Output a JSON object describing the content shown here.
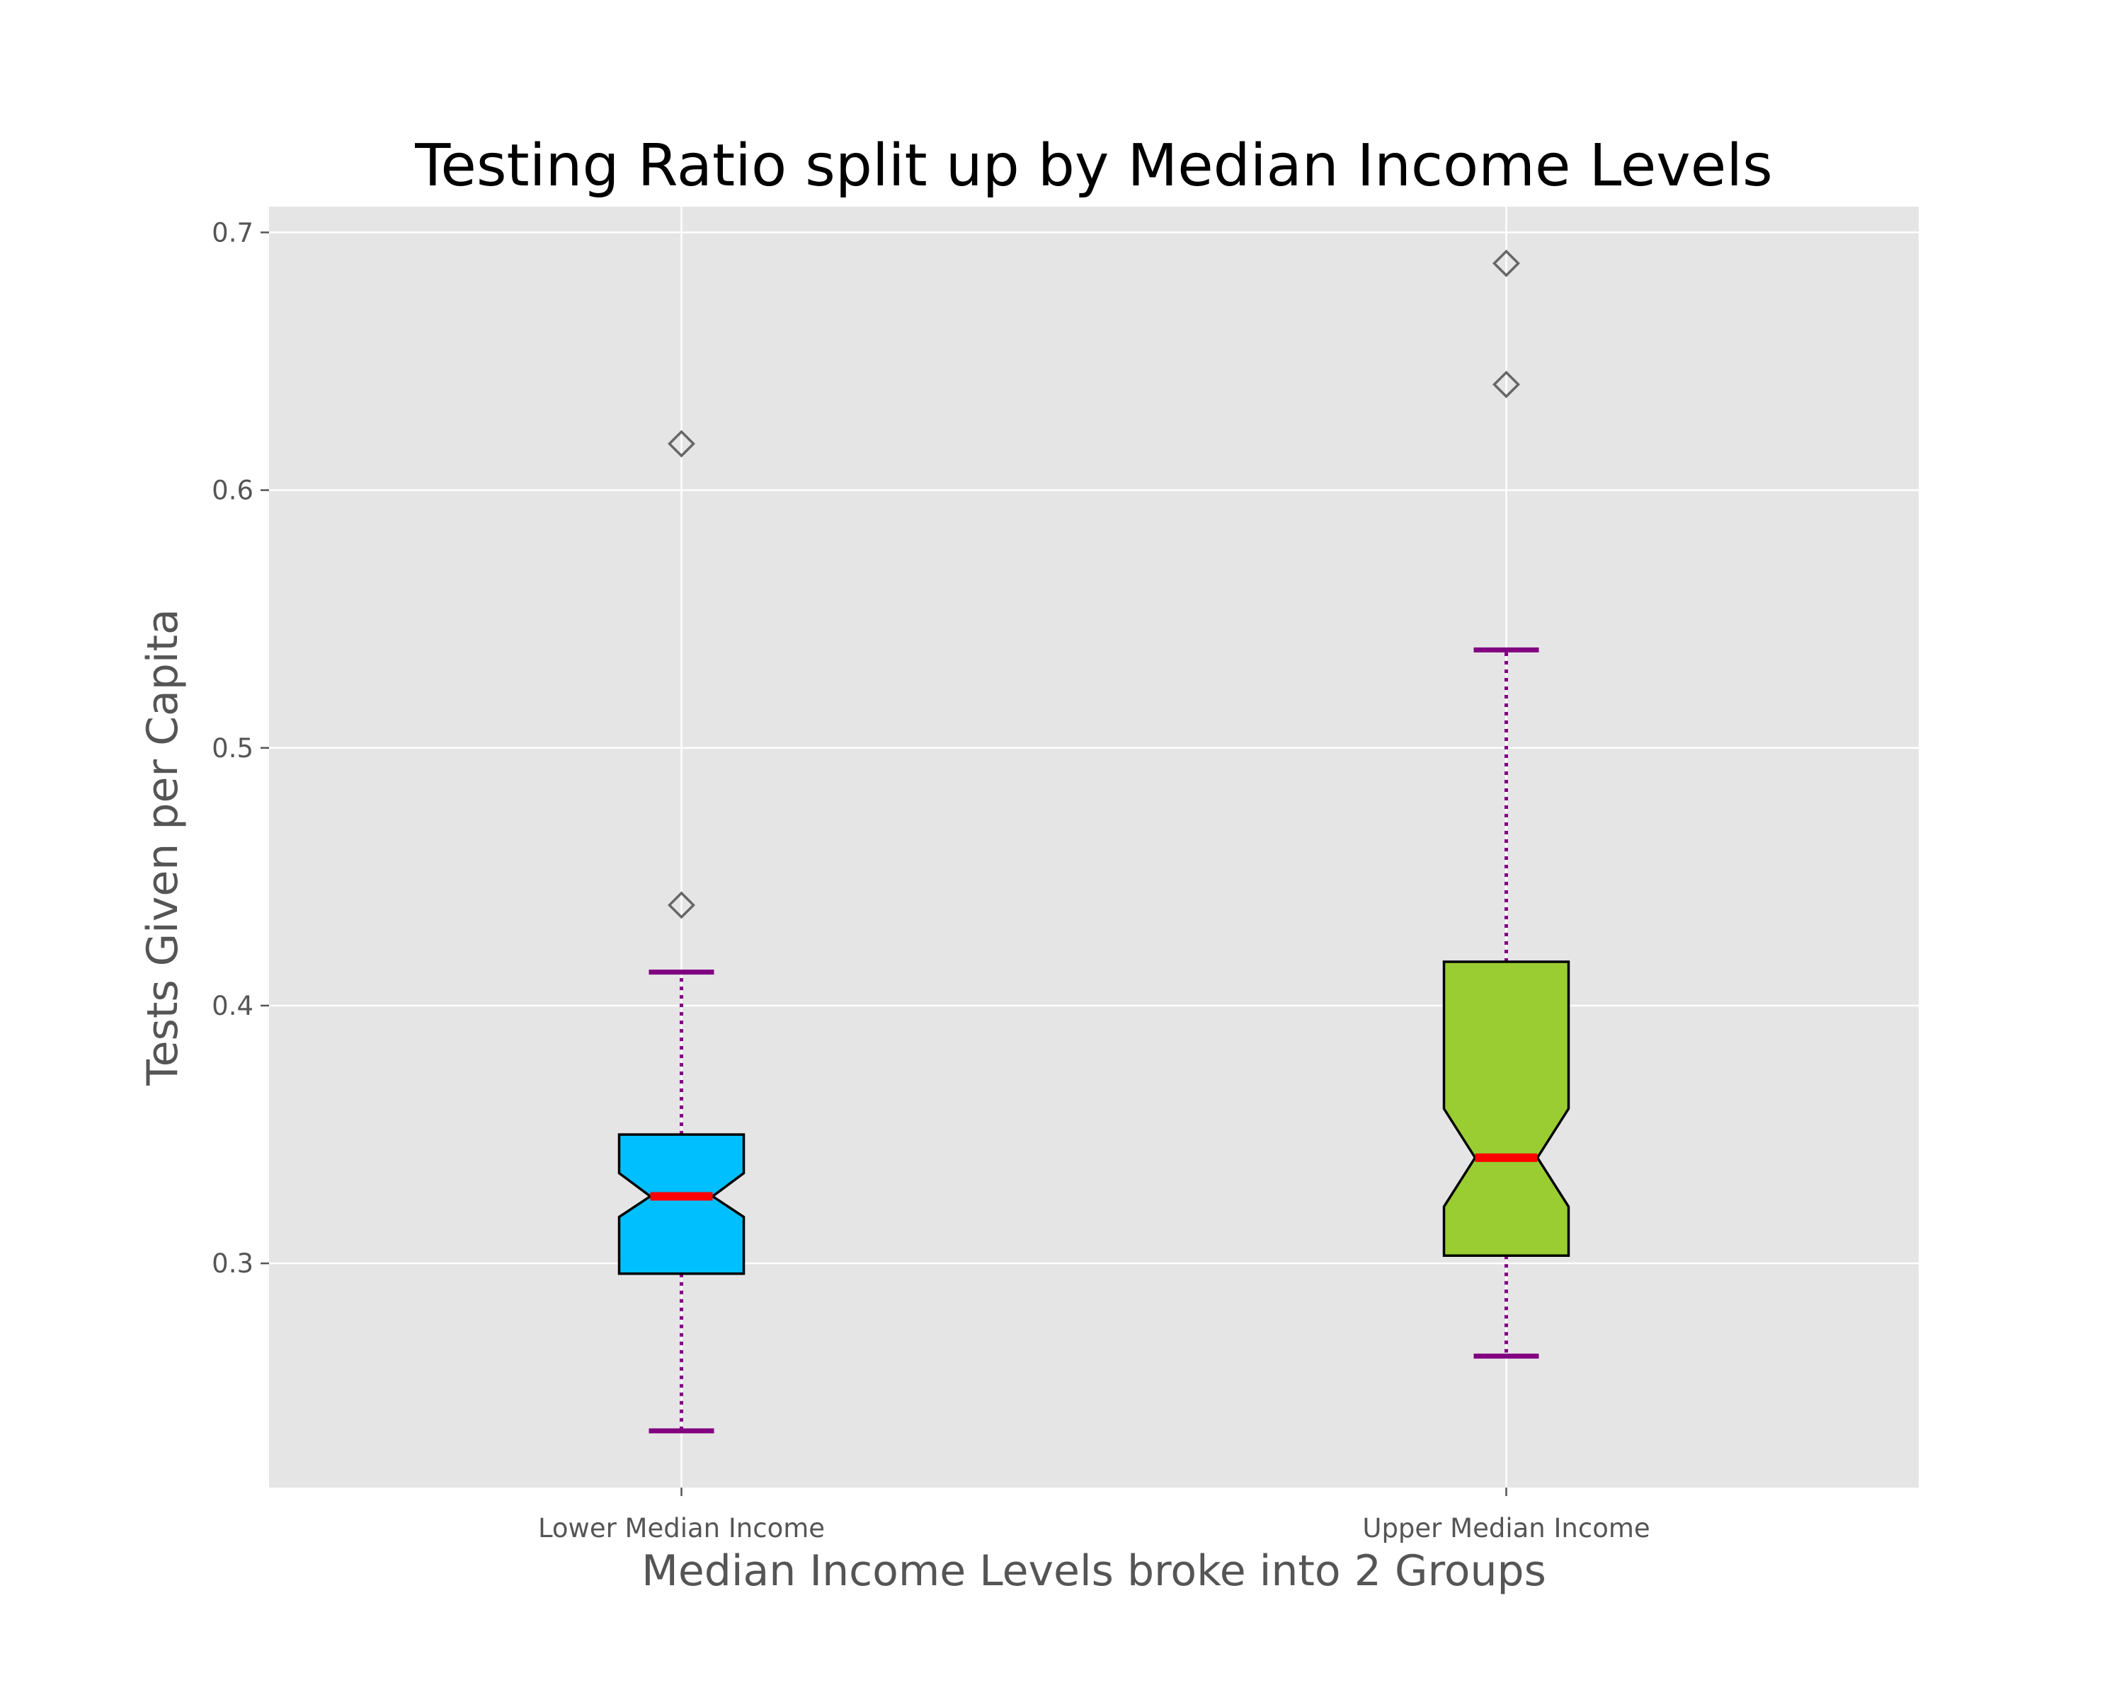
{
  "chart_data": {
    "type": "box",
    "title": "Testing Ratio split up by Median Income Levels",
    "xlabel": "Median Income Levels broke into 2 Groups",
    "ylabel": "Tests Given per Capita",
    "ylim": [
      0.213,
      0.71
    ],
    "yticks": [
      "0.3",
      "0.4",
      "0.5",
      "0.6",
      "0.7"
    ],
    "grid": true,
    "notched": true,
    "categories": [
      "Lower Median Income",
      "Upper Median Income"
    ],
    "boxes": [
      {
        "name": "Lower Median Income",
        "whisker_low": 0.235,
        "q1": 0.296,
        "median": 0.326,
        "q3": 0.35,
        "whisker_high": 0.413,
        "notch_low": 0.318,
        "notch_high": 0.335,
        "outliers": [
          0.439,
          0.618
        ],
        "color": "#00bfff"
      },
      {
        "name": "Upper Median Income",
        "whisker_low": 0.264,
        "q1": 0.303,
        "median": 0.341,
        "q3": 0.417,
        "whisker_high": 0.538,
        "notch_low": 0.322,
        "notch_high": 0.36,
        "outliers": [
          0.641,
          0.688
        ],
        "color": "#9acd32"
      }
    ],
    "colors": {
      "plot_background": "#e5e5e5",
      "grid": "#ffffff",
      "median": "#ff0000",
      "whisker": "#800080",
      "outlier_edge": "#666666",
      "text": "#555555"
    }
  }
}
